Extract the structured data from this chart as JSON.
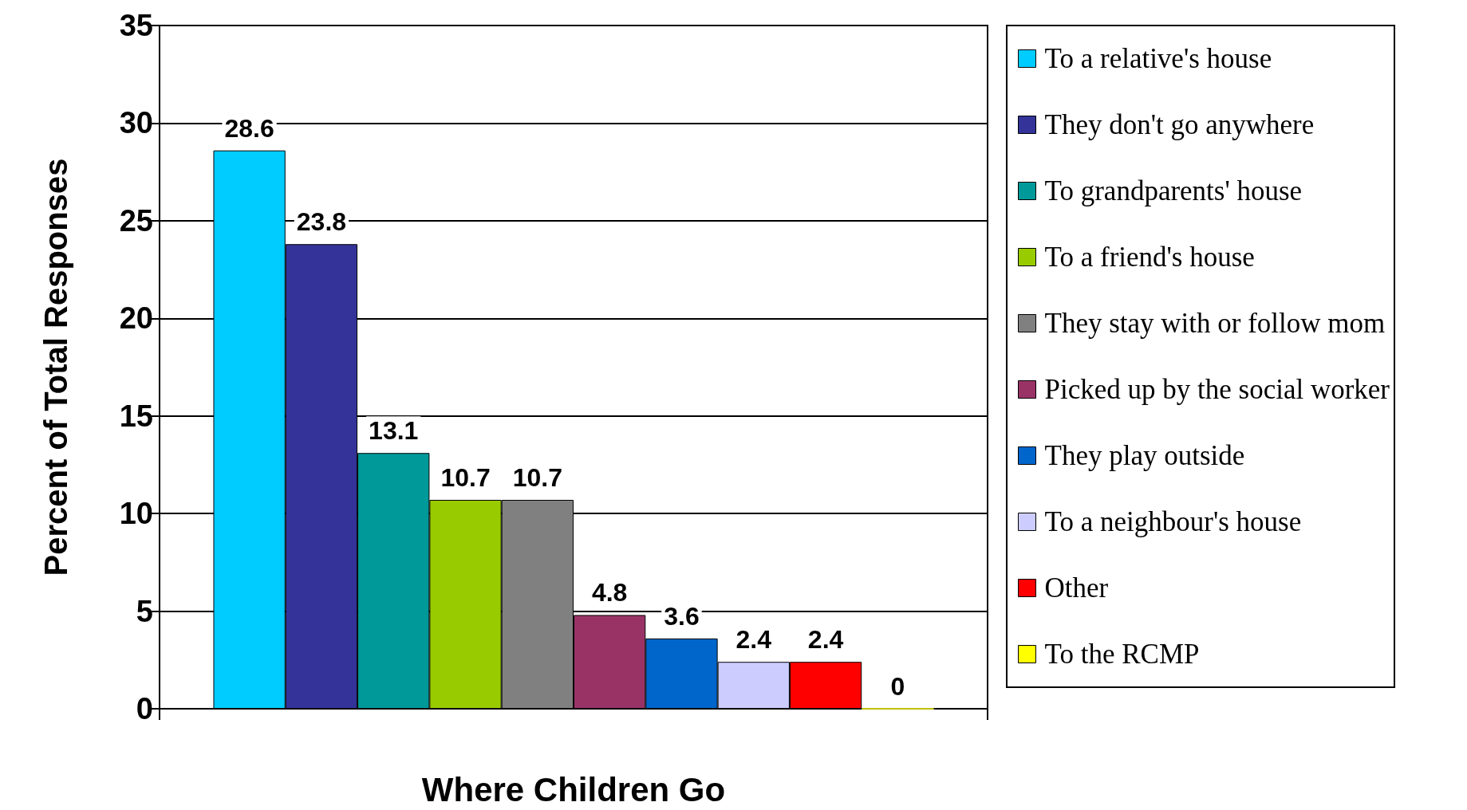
{
  "chart_data": {
    "type": "bar",
    "xlabel": "Where Children Go",
    "ylabel": "Percent of Total Responses",
    "categories": [
      null
    ],
    "series": [
      {
        "name": "To a relative's house",
        "color": "#00ccff",
        "values": [
          28.6
        ]
      },
      {
        "name": "They don't go anywhere",
        "color": "#333399",
        "values": [
          23.8
        ]
      },
      {
        "name": "To grandparents' house",
        "color": "#009999",
        "values": [
          13.1
        ]
      },
      {
        "name": "To a friend's house",
        "color": "#99cc00",
        "values": [
          10.7
        ]
      },
      {
        "name": "They stay with or follow mom",
        "color": "#808080",
        "values": [
          10.7
        ]
      },
      {
        "name": "Picked up by the social worker",
        "color": "#993366",
        "values": [
          4.8
        ]
      },
      {
        "name": "They play outside",
        "color": "#0066cc",
        "values": [
          3.6
        ]
      },
      {
        "name": "To a neighbour's house",
        "color": "#ccccff",
        "values": [
          2.4
        ]
      },
      {
        "name": "Other",
        "color": "#ff0000",
        "values": [
          2.4
        ]
      },
      {
        "name": "To the RCMP",
        "color": "#ffff00",
        "values": [
          0
        ]
      }
    ],
    "ylim": [
      0,
      35
    ],
    "yticks": [
      0,
      5,
      10,
      15,
      20,
      25,
      30,
      35
    ],
    "grid": "y",
    "legend": "right",
    "data_labels": true
  }
}
